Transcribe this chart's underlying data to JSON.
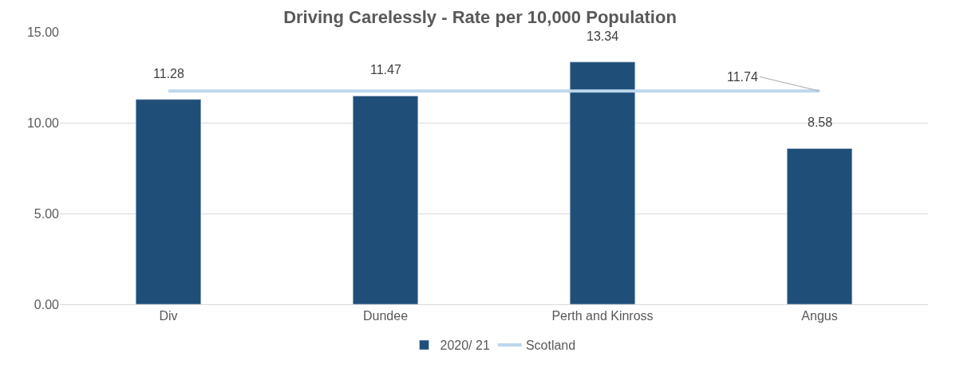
{
  "chart_data": {
    "type": "bar",
    "title": "Driving Carelessly - Rate per 10,000 Population",
    "categories": [
      "Div",
      "Dundee",
      "Perth and Kinross",
      "Angus"
    ],
    "series": [
      {
        "name": "2020/ 21",
        "color": "#1f4e79",
        "values": [
          11.28,
          11.47,
          13.34,
          8.58
        ]
      },
      {
        "name": "Scotland",
        "type": "line",
        "color": "#bdd7ee",
        "values": [
          11.74,
          11.74,
          11.74,
          11.74
        ],
        "value_labels": [
          null,
          null,
          null,
          "11.74"
        ]
      }
    ],
    "data_labels": true,
    "ylim": [
      0,
      15
    ],
    "yticks": [
      {
        "value": 0,
        "label": "0.00"
      },
      {
        "value": 5,
        "label": "5.00"
      },
      {
        "value": 10,
        "label": "10.00"
      },
      {
        "value": 15,
        "label": "15.00"
      }
    ],
    "grid": "y",
    "legend": "bottom"
  }
}
